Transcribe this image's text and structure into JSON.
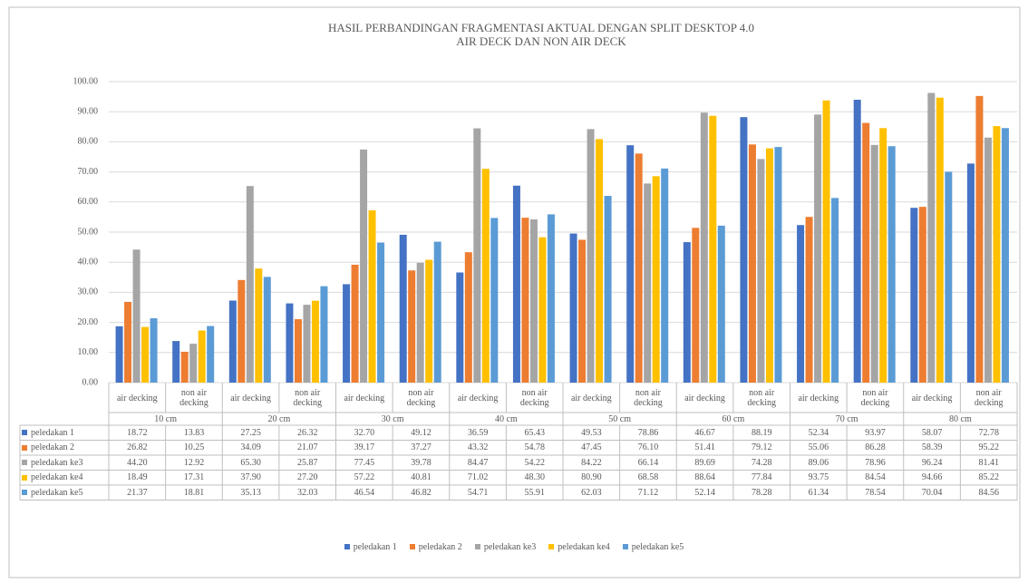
{
  "chart_data": {
    "type": "bar",
    "title": "HASIL PERBANDINGAN FRAGMENTASI AKTUAL DENGAN SPLIT DESKTOP 4.0",
    "subtitle": "AIR DECK DAN NON AIR DECK",
    "categories": [
      "air decking",
      "non air decking",
      "air decking",
      "non air decking",
      "air decking",
      "non air decking",
      "air decking",
      "non air decking",
      "air decking",
      "non air decking",
      "air decking",
      "non air decking",
      "air decking",
      "non air decking",
      "air decking",
      "non air decking"
    ],
    "groups": [
      "10 cm",
      "20 cm",
      "30 cm",
      "40 cm",
      "50 cm",
      "60 cm",
      "70 cm",
      "80 cm"
    ],
    "series": [
      {
        "name": "peledakan 1",
        "color": "#4472c4",
        "values": [
          18.72,
          13.83,
          27.25,
          26.32,
          32.7,
          49.12,
          36.59,
          65.43,
          49.53,
          78.86,
          46.67,
          88.19,
          52.34,
          93.97,
          58.07,
          72.78
        ],
        "value_labels": [
          "18.72",
          "13.83",
          "27.25",
          "26.32",
          "32.70",
          "49.12",
          "36.59",
          "65.43",
          "49.53",
          "78.86",
          "46.67",
          "88.19",
          "52.34",
          "93.97",
          "58.07",
          "72.78"
        ]
      },
      {
        "name": "peledakan 2",
        "color": "#ed7d31",
        "values": [
          26.82,
          10.25,
          34.09,
          21.07,
          39.17,
          37.27,
          43.32,
          54.78,
          47.45,
          76.1,
          51.41,
          79.12,
          55.06,
          86.28,
          58.39,
          95.22
        ],
        "value_labels": [
          "26.82",
          "10.25",
          "34.09",
          "21.07",
          "39.17",
          "37.27",
          "43.32",
          "54.78",
          "47.45",
          "76.10",
          "51.41",
          "79.12",
          "55.06",
          "86.28",
          "58.39",
          "95.22"
        ]
      },
      {
        "name": "peledakan ke3",
        "color": "#a5a5a5",
        "values": [
          44.2,
          12.92,
          65.3,
          25.87,
          77.45,
          39.78,
          84.47,
          54.22,
          84.22,
          66.14,
          89.69,
          74.28,
          89.06,
          78.96,
          96.24,
          81.41
        ],
        "value_labels": [
          "44.20",
          "12.92",
          "65.30",
          "25.87",
          "77.45",
          "39.78",
          "84.47",
          "54.22",
          "84.22",
          "66.14",
          "89.69",
          "74.28",
          "89.06",
          "78.96",
          "96.24",
          "81.41"
        ]
      },
      {
        "name": "peledakan ke4",
        "color": "#ffc000",
        "values": [
          18.49,
          17.31,
          37.9,
          27.2,
          57.22,
          40.81,
          71.02,
          48.3,
          80.9,
          68.58,
          88.64,
          77.84,
          93.75,
          84.54,
          94.66,
          85.22
        ],
        "value_labels": [
          "18.49",
          "17.31",
          "37.90",
          "27.20",
          "57.22",
          "40.81",
          "71.02",
          "48.30",
          "80.90",
          "68.58",
          "88.64",
          "77.84",
          "93.75",
          "84.54",
          "94.66",
          "85.22"
        ]
      },
      {
        "name": "peledakan ke5",
        "color": "#5b9bd5",
        "values": [
          21.37,
          18.81,
          35.13,
          32.03,
          46.54,
          46.82,
          54.71,
          55.91,
          62.03,
          71.12,
          52.14,
          78.28,
          61.34,
          78.54,
          70.04,
          84.56
        ],
        "value_labels": [
          "21.37",
          "18.81",
          "35.13",
          "32.03",
          "46.54",
          "46.82",
          "54.71",
          "55.91",
          "62.03",
          "71.12",
          "52.14",
          "78.28",
          "61.34",
          "78.54",
          "70.04",
          "84.56"
        ]
      }
    ],
    "ylim": [
      0,
      100
    ],
    "yticks": [
      {
        "value": 0,
        "label": "0.00"
      },
      {
        "value": 10,
        "label": "10.00"
      },
      {
        "value": 20,
        "label": "20.00"
      },
      {
        "value": 30,
        "label": "30.00"
      },
      {
        "value": 40,
        "label": "40.00"
      },
      {
        "value": 50,
        "label": "50.00"
      },
      {
        "value": 60,
        "label": "60.00"
      },
      {
        "value": 70,
        "label": "70.00"
      },
      {
        "value": 80,
        "label": "80.00"
      },
      {
        "value": 90,
        "label": "90.00"
      },
      {
        "value": 100,
        "label": "100.00"
      }
    ],
    "grid": true
  }
}
